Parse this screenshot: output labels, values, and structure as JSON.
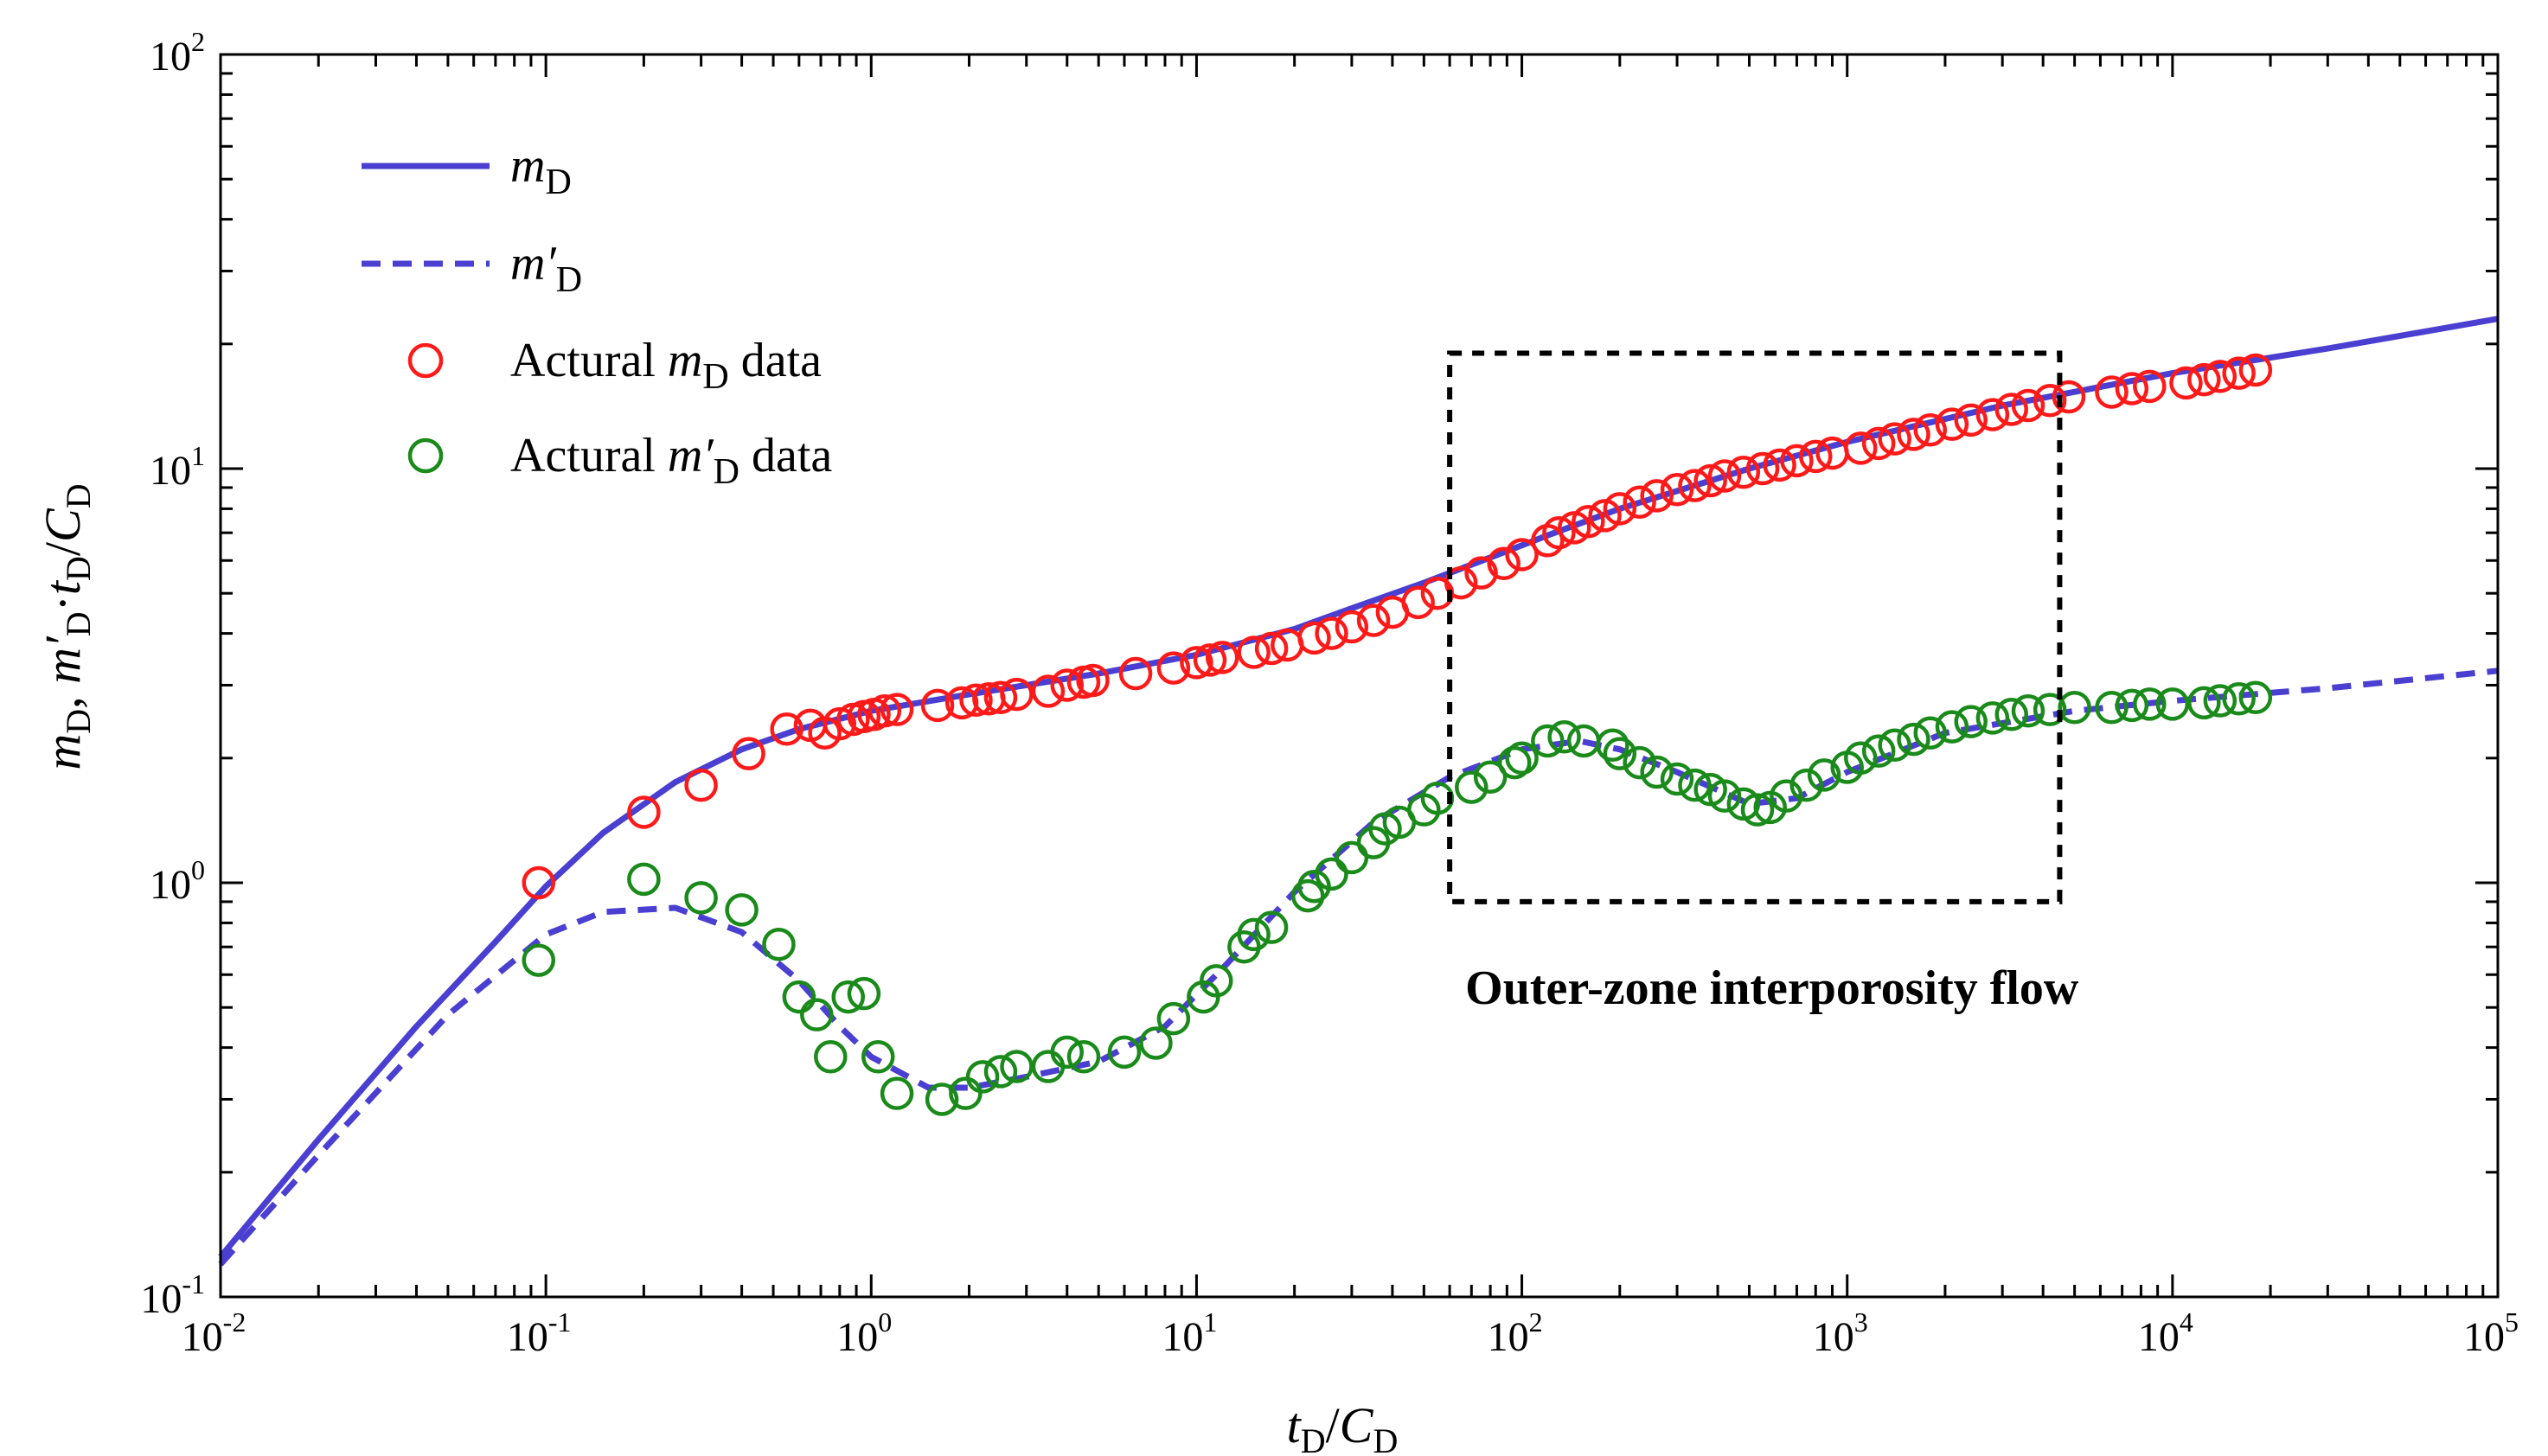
{
  "chart_data": {
    "type": "scatter",
    "xscale": "log",
    "yscale": "log",
    "xlim": [
      0.01,
      100000
    ],
    "ylim": [
      0.1,
      100
    ],
    "xlabel": "tD/CD",
    "ylabel": "mD, m′D·tD/CD",
    "x_ticks": [
      {
        "base": "10",
        "exp": "-2",
        "value": 0.01
      },
      {
        "base": "10",
        "exp": "-1",
        "value": 0.1
      },
      {
        "base": "10",
        "exp": "0",
        "value": 1
      },
      {
        "base": "10",
        "exp": "1",
        "value": 10
      },
      {
        "base": "10",
        "exp": "2",
        "value": 100
      },
      {
        "base": "10",
        "exp": "3",
        "value": 1000
      },
      {
        "base": "10",
        "exp": "4",
        "value": 10000
      },
      {
        "base": "10",
        "exp": "5",
        "value": 100000
      }
    ],
    "y_ticks": [
      {
        "base": "10",
        "exp": "-1",
        "value": 0.1
      },
      {
        "base": "10",
        "exp": "0",
        "value": 1
      },
      {
        "base": "10",
        "exp": "1",
        "value": 10
      },
      {
        "base": "10",
        "exp": "2",
        "value": 100
      }
    ],
    "legend": [
      {
        "name": "mD",
        "style": "solid-line",
        "color": "#4a3fd0"
      },
      {
        "name": "m′D",
        "style": "dashed-line",
        "color": "#4a3fd0"
      },
      {
        "name": "Actural mD data",
        "style": "circle",
        "color": "#ff1a1a"
      },
      {
        "name": "Actural m′D data",
        "style": "circle",
        "color": "#1a8a1a"
      }
    ],
    "annotation": {
      "text": "Outer-zone interporosity flow",
      "box_x": [
        60,
        4500
      ],
      "box_y": [
        0.9,
        19
      ]
    },
    "series": [
      {
        "name": "mD",
        "kind": "line",
        "color": "#4a3fd0",
        "x": [
          0.01,
          0.02,
          0.04,
          0.07,
          0.1,
          0.15,
          0.25,
          0.4,
          0.6,
          1,
          2,
          5,
          10,
          20,
          30,
          50,
          80,
          120,
          200,
          500,
          1000,
          3000,
          10000,
          30000,
          100000
        ],
        "y": [
          0.125,
          0.24,
          0.45,
          0.72,
          0.98,
          1.32,
          1.75,
          2.1,
          2.35,
          2.6,
          2.85,
          3.2,
          3.55,
          4.1,
          4.6,
          5.3,
          6.1,
          6.9,
          8.0,
          10.0,
          11.6,
          14.2,
          17.0,
          19.5,
          23.0
        ]
      },
      {
        "name": "m′D",
        "kind": "dashed",
        "color": "#4a3fd0",
        "x": [
          0.01,
          0.02,
          0.05,
          0.1,
          0.15,
          0.25,
          0.4,
          0.6,
          0.8,
          1,
          1.5,
          2,
          3,
          5,
          8,
          12,
          20,
          35,
          60,
          100,
          150,
          200,
          300,
          500,
          700,
          1000,
          2000,
          5000,
          10000,
          30000,
          100000
        ],
        "y": [
          0.12,
          0.22,
          0.48,
          0.75,
          0.85,
          0.87,
          0.76,
          0.58,
          0.45,
          0.38,
          0.32,
          0.32,
          0.34,
          0.37,
          0.45,
          0.62,
          0.95,
          1.4,
          1.8,
          2.1,
          2.2,
          2.1,
          1.85,
          1.55,
          1.6,
          1.85,
          2.3,
          2.6,
          2.75,
          2.95,
          3.25
        ]
      },
      {
        "name": "Actural mD data",
        "kind": "markers",
        "color": "#ff1a1a",
        "x": [
          0.095,
          0.2,
          0.3,
          0.42,
          0.55,
          0.65,
          0.72,
          0.8,
          0.88,
          0.95,
          1.02,
          1.1,
          1.2,
          1.6,
          1.9,
          2.1,
          2.3,
          2.5,
          2.8,
          3.5,
          4.0,
          4.5,
          4.8,
          6.5,
          8.5,
          10,
          11,
          12,
          15,
          17,
          19,
          23,
          26,
          30,
          35,
          40,
          48,
          55,
          65,
          75,
          88,
          100,
          120,
          130,
          145,
          160,
          180,
          200,
          230,
          260,
          300,
          340,
          380,
          420,
          480,
          550,
          620,
          700,
          800,
          900,
          1100,
          1250,
          1400,
          1600,
          1800,
          2100,
          2400,
          2800,
          3200,
          3600,
          4200,
          4800,
          6500,
          7500,
          8500,
          11000,
          12500,
          14000,
          16000,
          18000
        ],
        "y": [
          1.0,
          1.48,
          1.72,
          2.05,
          2.35,
          2.4,
          2.3,
          2.42,
          2.48,
          2.52,
          2.55,
          2.6,
          2.62,
          2.68,
          2.72,
          2.76,
          2.78,
          2.8,
          2.85,
          2.9,
          3.0,
          3.05,
          3.08,
          3.2,
          3.3,
          3.4,
          3.45,
          3.5,
          3.6,
          3.68,
          3.75,
          3.9,
          4.0,
          4.15,
          4.3,
          4.5,
          4.75,
          5.0,
          5.3,
          5.6,
          5.9,
          6.2,
          6.7,
          7.0,
          7.2,
          7.45,
          7.7,
          8.0,
          8.3,
          8.6,
          8.9,
          9.1,
          9.35,
          9.6,
          9.8,
          10.0,
          10.2,
          10.45,
          10.7,
          10.9,
          11.2,
          11.5,
          11.8,
          12.1,
          12.4,
          12.8,
          13.1,
          13.5,
          13.9,
          14.2,
          14.6,
          14.9,
          15.3,
          15.6,
          15.8,
          16.1,
          16.4,
          16.7,
          17.0,
          17.3
        ]
      },
      {
        "name": "Actural m′D data",
        "kind": "markers",
        "color": "#1a8a1a",
        "x": [
          0.095,
          0.2,
          0.3,
          0.4,
          0.52,
          0.6,
          0.68,
          0.75,
          0.85,
          0.95,
          1.05,
          1.2,
          1.65,
          1.95,
          2.2,
          2.5,
          2.8,
          3.5,
          4.0,
          4.5,
          6.0,
          7.5,
          8.5,
          10.5,
          11.5,
          14,
          15,
          17,
          22,
          23,
          26,
          30,
          35,
          38,
          42,
          50,
          55,
          70,
          80,
          95,
          100,
          120,
          135,
          155,
          190,
          200,
          230,
          260,
          300,
          340,
          380,
          420,
          480,
          530,
          580,
          650,
          750,
          850,
          1000,
          1100,
          1250,
          1400,
          1600,
          1800,
          2100,
          2400,
          2800,
          3200,
          3600,
          4200,
          5000,
          6500,
          7500,
          8500,
          10000,
          12500,
          14000,
          16000,
          18000
        ],
        "y": [
          0.65,
          1.02,
          0.92,
          0.86,
          0.71,
          0.53,
          0.48,
          0.38,
          0.53,
          0.54,
          0.38,
          0.31,
          0.3,
          0.31,
          0.34,
          0.35,
          0.36,
          0.36,
          0.39,
          0.38,
          0.39,
          0.41,
          0.47,
          0.53,
          0.58,
          0.7,
          0.75,
          0.78,
          0.93,
          0.98,
          1.05,
          1.15,
          1.25,
          1.35,
          1.4,
          1.5,
          1.6,
          1.7,
          1.8,
          1.95,
          2.0,
          2.2,
          2.25,
          2.2,
          2.15,
          2.05,
          1.95,
          1.85,
          1.78,
          1.72,
          1.68,
          1.62,
          1.55,
          1.5,
          1.52,
          1.62,
          1.72,
          1.82,
          1.9,
          2.0,
          2.08,
          2.15,
          2.22,
          2.3,
          2.38,
          2.45,
          2.5,
          2.55,
          2.6,
          2.62,
          2.65,
          2.65,
          2.68,
          2.7,
          2.7,
          2.72,
          2.75,
          2.78,
          2.8
        ]
      }
    ]
  }
}
